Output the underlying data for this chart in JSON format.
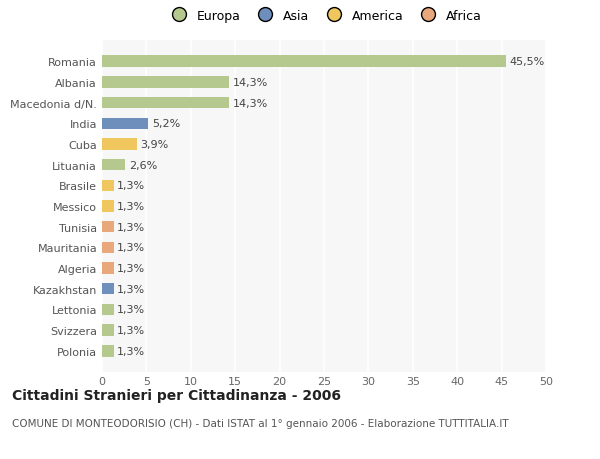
{
  "categories": [
    "Polonia",
    "Svizzera",
    "Lettonia",
    "Kazakhstan",
    "Algeria",
    "Mauritania",
    "Tunisia",
    "Messico",
    "Brasile",
    "Lituania",
    "Cuba",
    "India",
    "Macedonia d/N.",
    "Albania",
    "Romania"
  ],
  "values": [
    1.3,
    1.3,
    1.3,
    1.3,
    1.3,
    1.3,
    1.3,
    1.3,
    1.3,
    2.6,
    3.9,
    5.2,
    14.3,
    14.3,
    45.5
  ],
  "labels": [
    "1,3%",
    "1,3%",
    "1,3%",
    "1,3%",
    "1,3%",
    "1,3%",
    "1,3%",
    "1,3%",
    "1,3%",
    "2,6%",
    "3,9%",
    "5,2%",
    "14,3%",
    "14,3%",
    "45,5%"
  ],
  "colors": [
    "#b5c98e",
    "#b5c98e",
    "#b5c98e",
    "#6e8fbb",
    "#e8a87c",
    "#e8a87c",
    "#e8a87c",
    "#f0c75e",
    "#f0c75e",
    "#b5c98e",
    "#f0c75e",
    "#6e8fbb",
    "#b5c98e",
    "#b5c98e",
    "#b5c98e"
  ],
  "legend_labels": [
    "Europa",
    "Asia",
    "America",
    "Africa"
  ],
  "legend_colors": [
    "#b5c98e",
    "#6e8fbb",
    "#f0c75e",
    "#e8a87c"
  ],
  "xlim": [
    0,
    50
  ],
  "xticks": [
    0,
    5,
    10,
    15,
    20,
    25,
    30,
    35,
    40,
    45,
    50
  ],
  "title": "Cittadini Stranieri per Cittadinanza - 2006",
  "subtitle": "COMUNE DI MONTEODORISIO (CH) - Dati ISTAT al 1° gennaio 2006 - Elaborazione TUTTITALIA.IT",
  "bg_color": "#ffffff",
  "plot_bg_color": "#f7f7f7",
  "grid_color": "#ffffff",
  "bar_height": 0.55,
  "title_fontsize": 10,
  "subtitle_fontsize": 7.5,
  "label_fontsize": 8,
  "tick_fontsize": 8
}
